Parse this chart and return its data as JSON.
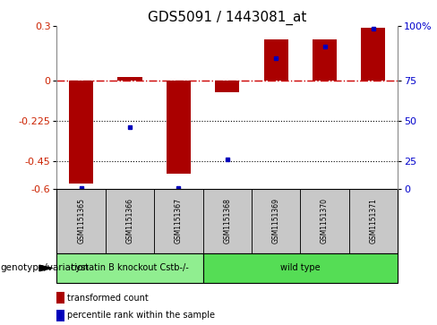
{
  "title": "GDS5091 / 1443081_at",
  "samples": [
    "GSM1151365",
    "GSM1151366",
    "GSM1151367",
    "GSM1151368",
    "GSM1151369",
    "GSM1151370",
    "GSM1151371"
  ],
  "red_values": [
    -0.575,
    0.018,
    -0.52,
    -0.068,
    0.225,
    0.225,
    0.29
  ],
  "blue_values": [
    -0.595,
    -0.258,
    -0.595,
    -0.44,
    0.12,
    0.185,
    0.285
  ],
  "ylim": [
    -0.6,
    0.3
  ],
  "yticks_left": [
    0.3,
    0.0,
    -0.225,
    -0.45,
    -0.6
  ],
  "yticks_left_labels": [
    "0.3",
    "0",
    "-0.225",
    "-0.45",
    "-0.6"
  ],
  "yticks_right_labels": [
    "100%",
    "75",
    "50",
    "25",
    "0"
  ],
  "hline_y": 0.0,
  "dotted_lines": [
    -0.225,
    -0.45
  ],
  "group1_label": "cystatin B knockout Cstb-/-",
  "group2_label": "wild type",
  "group1_n": 3,
  "group1_color": "#90EE90",
  "group2_color": "#55DD55",
  "genotype_label": "genotype/variation",
  "legend_red": "transformed count",
  "legend_blue": "percentile rank within the sample",
  "bar_width": 0.5,
  "bar_color_red": "#AA0000",
  "bar_color_blue": "#0000BB",
  "axis_left_color": "#CC2200",
  "axis_right_color": "#0000CC",
  "hline_color": "#CC0000",
  "hline_style": "-.",
  "title_fontsize": 11,
  "tick_fontsize": 8,
  "sample_fontsize": 5.5,
  "group_fontsize": 7,
  "legend_fontsize": 7,
  "genotype_fontsize": 7.5
}
